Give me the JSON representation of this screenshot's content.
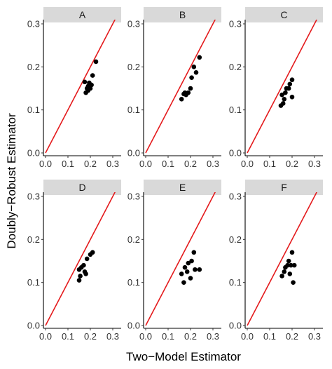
{
  "figure": {
    "xlabel": "Two−Model Estimator",
    "ylabel": "Doubly−Robust Estimator"
  },
  "chart_data": [
    {
      "type": "scatter",
      "panel": "A",
      "xlim": [
        0,
        0.3
      ],
      "ylim": [
        0,
        0.3
      ],
      "xticks": [
        "0.0",
        "0.1",
        "0.2",
        "0.3"
      ],
      "yticks": [
        "0.0",
        "0.1",
        "0.2",
        "0.3"
      ],
      "reference_line": "y = x",
      "points": [
        [
          0.18,
          0.14
        ],
        [
          0.185,
          0.15
        ],
        [
          0.19,
          0.145
        ],
        [
          0.2,
          0.15
        ],
        [
          0.195,
          0.163
        ],
        [
          0.175,
          0.165
        ],
        [
          0.205,
          0.158
        ],
        [
          0.21,
          0.18
        ],
        [
          0.225,
          0.212
        ],
        [
          0.19,
          0.155
        ]
      ]
    },
    {
      "type": "scatter",
      "panel": "B",
      "xlim": [
        0,
        0.3
      ],
      "ylim": [
        0,
        0.3
      ],
      "xticks": [
        "0.0",
        "0.1",
        "0.2",
        "0.3"
      ],
      "yticks": [
        "0.0",
        "0.1",
        "0.2",
        "0.3"
      ],
      "reference_line": "y = x",
      "points": [
        [
          0.16,
          0.125
        ],
        [
          0.17,
          0.137
        ],
        [
          0.175,
          0.14
        ],
        [
          0.18,
          0.135
        ],
        [
          0.19,
          0.14
        ],
        [
          0.2,
          0.15
        ],
        [
          0.205,
          0.175
        ],
        [
          0.215,
          0.2
        ],
        [
          0.225,
          0.187
        ],
        [
          0.24,
          0.222
        ]
      ]
    },
    {
      "type": "scatter",
      "panel": "C",
      "xlim": [
        0,
        0.3
      ],
      "ylim": [
        0,
        0.3
      ],
      "xticks": [
        "0.0",
        "0.1",
        "0.2",
        "0.3"
      ],
      "yticks": [
        "0.0",
        "0.1",
        "0.2",
        "0.3"
      ],
      "reference_line": "y = x",
      "points": [
        [
          0.15,
          0.11
        ],
        [
          0.16,
          0.115
        ],
        [
          0.165,
          0.125
        ],
        [
          0.155,
          0.135
        ],
        [
          0.17,
          0.14
        ],
        [
          0.175,
          0.15
        ],
        [
          0.185,
          0.15
        ],
        [
          0.19,
          0.16
        ],
        [
          0.2,
          0.17
        ],
        [
          0.2,
          0.13
        ]
      ]
    },
    {
      "type": "scatter",
      "panel": "D",
      "xlim": [
        0,
        0.3
      ],
      "ylim": [
        0,
        0.3
      ],
      "xticks": [
        "0.0",
        "0.1",
        "0.2",
        "0.3"
      ],
      "yticks": [
        "0.0",
        "0.1",
        "0.2",
        "0.3"
      ],
      "reference_line": "y = x",
      "points": [
        [
          0.15,
          0.105
        ],
        [
          0.155,
          0.115
        ],
        [
          0.15,
          0.13
        ],
        [
          0.16,
          0.135
        ],
        [
          0.17,
          0.14
        ],
        [
          0.175,
          0.125
        ],
        [
          0.18,
          0.12
        ],
        [
          0.185,
          0.155
        ],
        [
          0.2,
          0.165
        ],
        [
          0.21,
          0.17
        ]
      ]
    },
    {
      "type": "scatter",
      "panel": "E",
      "xlim": [
        0,
        0.3
      ],
      "ylim": [
        0,
        0.3
      ],
      "xticks": [
        "0.0",
        "0.1",
        "0.2",
        "0.3"
      ],
      "yticks": [
        "0.0",
        "0.1",
        "0.2",
        "0.3"
      ],
      "reference_line": "y = x",
      "points": [
        [
          0.16,
          0.12
        ],
        [
          0.17,
          0.1
        ],
        [
          0.175,
          0.135
        ],
        [
          0.185,
          0.125
        ],
        [
          0.19,
          0.145
        ],
        [
          0.2,
          0.11
        ],
        [
          0.205,
          0.15
        ],
        [
          0.215,
          0.17
        ],
        [
          0.22,
          0.13
        ],
        [
          0.24,
          0.13
        ]
      ]
    },
    {
      "type": "scatter",
      "panel": "F",
      "xlim": [
        0,
        0.3
      ],
      "ylim": [
        0,
        0.3
      ],
      "xticks": [
        "0.0",
        "0.1",
        "0.2",
        "0.3"
      ],
      "yticks": [
        "0.0",
        "0.1",
        "0.2",
        "0.3"
      ],
      "reference_line": "y = x",
      "points": [
        [
          0.155,
          0.115
        ],
        [
          0.165,
          0.125
        ],
        [
          0.17,
          0.135
        ],
        [
          0.18,
          0.14
        ],
        [
          0.185,
          0.15
        ],
        [
          0.19,
          0.12
        ],
        [
          0.195,
          0.14
        ],
        [
          0.2,
          0.17
        ],
        [
          0.205,
          0.1
        ],
        [
          0.21,
          0.14
        ]
      ]
    }
  ]
}
